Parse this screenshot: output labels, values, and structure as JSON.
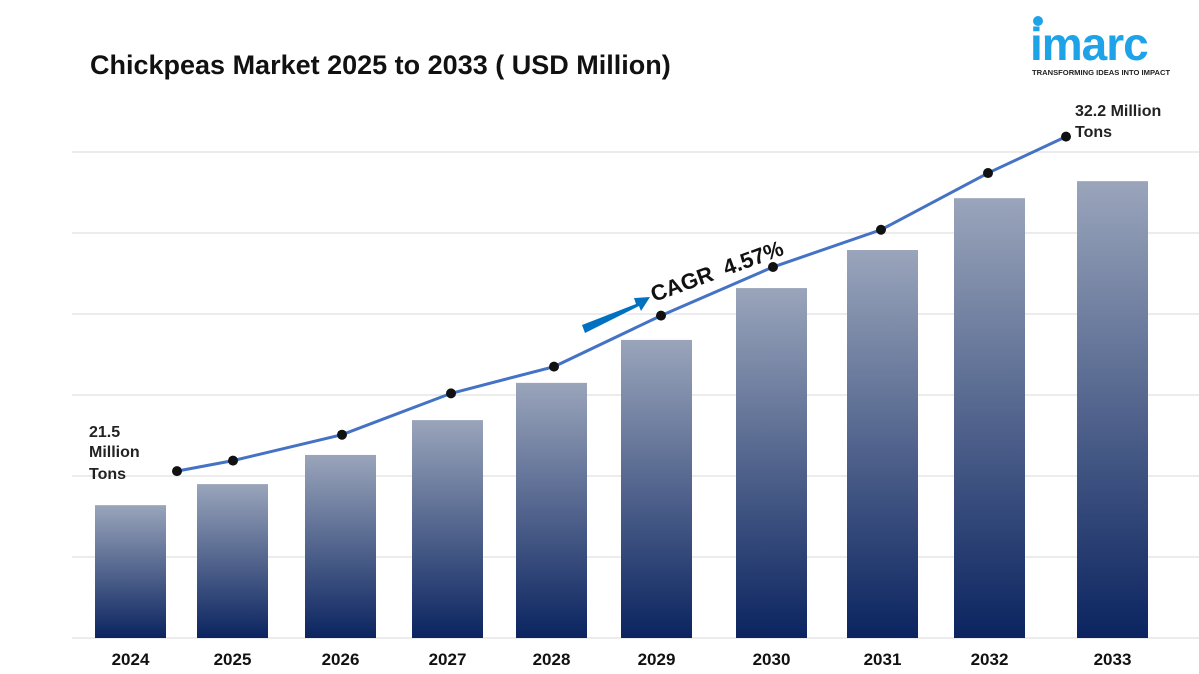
{
  "logo": {
    "brand": "imarc",
    "tagline": "TRANSFORMING IDEAS INTO IMPACT",
    "color": "#1fa3e8"
  },
  "chart_data": {
    "type": "bar",
    "title": "Chickpeas Market 2025 to 2033 ( USD Million)",
    "categories": [
      "2024",
      "2025",
      "2026",
      "2027",
      "2028",
      "2029",
      "2030",
      "2031",
      "2032",
      "2033"
    ],
    "values": [
      1.64,
      1.9,
      2.26,
      2.69,
      3.15,
      3.68,
      4.32,
      4.79,
      5.43,
      5.64
    ],
    "line_values": [
      2.06,
      2.19,
      2.51,
      3.02,
      3.35,
      3.98,
      4.58,
      5.04,
      5.74,
      6.19
    ],
    "ylim": [
      0,
      6.5
    ],
    "grid": true,
    "annotations": {
      "start": [
        "21.5",
        "Million",
        "Tons"
      ],
      "end": [
        "32.2 Million",
        "Tons"
      ],
      "cagr": "CAGR  4.57%"
    },
    "colors": {
      "bar_top": "#9aa5bb",
      "bar_bottom": "#0b2460",
      "line": "#4472c4",
      "marker": "#111111",
      "arrow": "#0070c0"
    }
  }
}
